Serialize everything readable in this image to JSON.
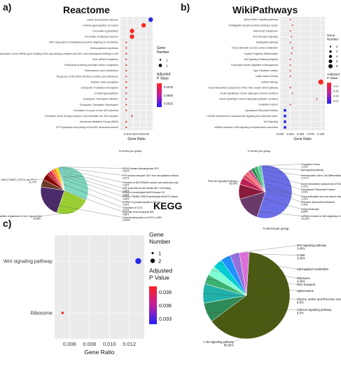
{
  "panels": {
    "a": {
      "letter": "a)",
      "title": "Reactome"
    },
    "b": {
      "letter": "b)",
      "title": "WikiPathways"
    },
    "c": {
      "letter": "c)",
      "title": "KEGG"
    }
  },
  "pie_header": "% terms per group",
  "legend_labels": {
    "gene_number": "Gene\nNumber",
    "adjusted_p": "Adjusted\nP Value"
  },
  "chart_data": [
    {
      "id": "reactome_dot",
      "type": "scatter",
      "title": "Reactome",
      "xlabel": "Gene Ratio",
      "ylabel": "",
      "x_ticks": [
        "0.01",
        "0.02",
        "0.03",
        "0.04"
      ],
      "xlim": [
        0.0,
        0.05
      ],
      "categories": [
        "HDMs demethylate histones",
        "O-linked glycosylation of mucins",
        "Chromatin organization",
        "Chromatin modifying enzymes",
        "SRP-dependent cotranslational protein targeting to membrane",
        "Selenocysteine synthesis",
        "Activation of the mRNA upon binding of the cap-binding complex and eIFs, and subsequent binding to 43S",
        "Viral mRNA Translation",
        "Ribosomal scanning and start codon recognition",
        "Selenoamino acid metabolism",
        "Response of EIF2AK4 (GCN2) to amino acid deficiency",
        "Peptide chain elongation",
        "Eukaryotic Translation Elongation",
        "O-linked glycosylation",
        "Eukaryotic Translation Initiation",
        "Eukaryotic Translation Termination",
        "Formation of a pool of free 40S subunits",
        "Formation of the ternary complex, and thereafter the 43S complex",
        "Nonsense-Mediated Decay (NMD)",
        "GTP hydrolysis and joining of the 60S ribosomal subunit"
      ],
      "gene_ratio": [
        0.047,
        0.036,
        0.018,
        0.018,
        0.009,
        0.009,
        0.009,
        0.009,
        0.009,
        0.009,
        0.009,
        0.009,
        0.009,
        0.009,
        0.009,
        0.009,
        0.009,
        0.018,
        0.009,
        0.009
      ],
      "gene_number": [
        2,
        2,
        2,
        2,
        1,
        1,
        1,
        1,
        1,
        1,
        1,
        1,
        1,
        1,
        1,
        1,
        1,
        1,
        1,
        1
      ],
      "p_adjust": [
        0.0025,
        0.009,
        0.009,
        0.009,
        0.009,
        0.009,
        0.009,
        0.009,
        0.009,
        0.009,
        0.009,
        0.009,
        0.009,
        0.009,
        0.009,
        0.009,
        0.009,
        0.009,
        0.009,
        0.009
      ],
      "legend": {
        "size_ticks": [
          "1",
          "2"
        ],
        "color_ticks": [
          "0.0075",
          "0.0050",
          "0.0025"
        ]
      }
    },
    {
      "id": "wikipathways_dot",
      "type": "scatter",
      "title": "WikiPathways",
      "xlabel": "Gene Ratio",
      "ylabel": "",
      "x_ticks": [
        "0.000",
        "0.025",
        "0.050",
        "0.075",
        "0.100"
      ],
      "xlim": [
        0.0,
        0.11
      ],
      "categories": [
        "Alpha 6 Beta 4 signaling pathway",
        "Intraflagellar transport proteins binding to dynein",
        "Vitamin B12 Metabolism",
        "EPO Receptor Signaling",
        "Sphingolipid pathway",
        "Trans-sulfuration and one carbon metabolism",
        "Cardiac Progenitor Differentiation",
        "Wnt Signaling Pathway (Netpath)",
        "Transcription factor regulation in adipogenesis",
        "Type II diabetes mellitus",
        "Leptin Insulin Overlap",
        "miRNA Pathway",
        "Novel intracellular components of RIG-I-like receptor (RLR) pathway",
        "Insulin signalling in human adipocytes (normal condition)",
        "Insulin signalling in human adipocytes (diabetic condition)",
        "Translation Factors",
        "Cytoplasmic Ribosomal Proteins",
        "LncRNA involvement in canonical Wnt signaling and colorectal cancer",
        "Wnt Signaling",
        "miRNAs involved in Wnt Signaling in hepatocellular carcinoma"
      ],
      "gene_ratio": [
        0.025,
        0.03,
        0.025,
        0.028,
        0.025,
        0.03,
        0.028,
        0.025,
        0.025,
        0.025,
        0.025,
        0.1,
        0.025,
        0.03,
        0.09,
        0.025,
        0.012,
        0.012,
        0.012,
        0.012
      ],
      "gene_number": [
        1,
        1,
        1,
        1,
        1,
        1,
        1,
        1,
        1,
        1,
        1,
        5,
        1,
        1,
        1,
        1,
        2,
        2,
        2,
        2
      ],
      "p_adjust": [
        0.075,
        0.075,
        0.075,
        0.075,
        0.075,
        0.075,
        0.075,
        0.075,
        0.075,
        0.075,
        0.075,
        0.08,
        0.075,
        0.075,
        0.075,
        0.075,
        0.015,
        0.015,
        0.015,
        0.015
      ],
      "legend": {
        "size_ticks": [
          "2",
          "3",
          "4",
          "5",
          "6"
        ],
        "color_ticks": [
          "0.07",
          "0.05",
          "0.03",
          "0.01"
        ]
      }
    },
    {
      "id": "kegg_dot",
      "type": "scatter",
      "title": "KEGG",
      "xlabel": "Gene Ratio",
      "ylabel": "",
      "x_ticks": [
        "0.006",
        "0.008",
        "0.010",
        "0.012"
      ],
      "xlim": [
        0.0045,
        0.0135
      ],
      "categories": [
        "Wnt signaling pathway",
        "Ribosome"
      ],
      "gene_ratio": [
        0.0129,
        0.0053
      ],
      "gene_number": [
        2,
        1
      ],
      "p_adjust": [
        0.032,
        0.04
      ],
      "legend": {
        "size_ticks": [
          "1",
          "2"
        ],
        "color_ticks": [
          "0.039",
          "0.036",
          "0.033"
        ]
      }
    },
    {
      "id": "reactome_pie",
      "type": "pie",
      "header": "% terms per group",
      "slices": [
        {
          "label": "p-65 (RFC) forcode (MCC, SMC1, SMC3, PSMC1, DCP1A, and PFC4",
          "value": 31.77,
          "pct": "31.77%",
          "color": "#7fd9c0"
        },
        {
          "label": "Addition of galactose to Core 4 glycoprotein",
          "value": 21.88,
          "pct": "21.88% *",
          "color": "#9acd32"
        },
        {
          "label": "Oxytocin/vasopressin of p-PEC1 p-55%",
          "value": 20.55,
          "pct": "20.55%",
          "color": "#4b2a6a"
        },
        {
          "label": "Assembly of the eukaryotic 80S",
          "value": 4.88,
          "pct": "4.88%",
          "color": "#6b3a2a"
        },
        {
          "label": "Translation of 47-4C",
          "value": 4.07,
          "pct": "4.07%",
          "color": "#8b0000"
        },
        {
          "label": "HNRNC2 is phosphorylated at Ser1C4",
          "value": 1.63,
          "pct": "1.63%",
          "color": "#b22222"
        },
        {
          "label": "KDM6A, KDM6B, KDM7A demethylate Me2K37-Histone H3",
          "value": 1.63,
          "pct": "1.63%",
          "color": "#dc143c"
        },
        {
          "label": "KDM6A to demethylate Me2K9-histone H3",
          "value": 1.63,
          "pct": "1.63%",
          "color": "#ff6347"
        },
        {
          "label": "eIEF binds MAC1A and inhibits MKT-125 binding",
          "value": 1.63,
          "pct": "1.63%",
          "color": "#ff8c00"
        },
        {
          "label": "Formation of 60S-SRNMD complex and membrane fusion in intra-Golgi retrograde traffic",
          "value": 1.63,
          "pct": "1.63%",
          "color": "#ffd700"
        },
        {
          "label": "RYR sensors transport Ca2+ from sarcoplasmic reticulum lumen to cytosol",
          "value": 0.81,
          "pct": "0.81%",
          "color": "#32cd32"
        },
        {
          "label": "PAG4D nitrates dehydrogenase 2PG",
          "value": 0.81,
          "pct": "0.81% *",
          "color": "#1e90ff"
        }
      ]
    },
    {
      "id": "wikipathways_pie",
      "type": "pie",
      "header": "% terms per group",
      "slices": [
        {
          "label": "PI3K-Akt Signaling Pathway",
          "value": 56.96,
          "pct": "56.96%",
          "color": "#6a6ee8"
        },
        {
          "label": "miRNAs involved in Wnt signaling in hepatocellular carcinoma",
          "value": 15.33,
          "pct": "15.33%",
          "color": "#6b3a6b"
        },
        {
          "label": "Ciliary landscape",
          "value": 8.89,
          "pct": "8.89%",
          "color": "#8b1a3a"
        },
        {
          "label": "Selenium Micronutrient Network",
          "value": 4.44,
          "pct": "4.44%",
          "color": "#c21e56"
        },
        {
          "label": "Trans-sulfuration and one carbon metabolism",
          "value": 2.22,
          "pct": "2.22%",
          "color": "#e0405e"
        },
        {
          "label": "Cytoplasmic Ribosomal Proteins",
          "value": 2.22,
          "pct": "2.22%",
          "color": "#ff6b6b"
        },
        {
          "label": "Novel intracellular components of RIG-I-like receptor (RLR) pathway",
          "value": 2.22,
          "pct": "2.22%",
          "color": "#d94f8a"
        },
        {
          "label": "Hematopoietic Stem Cell Differentiation",
          "value": 2.22,
          "pct": "2.22 %",
          "color": "#2e8b57"
        },
        {
          "label": "Sphingolipid pathway",
          "value": 2.22,
          "pct": "",
          "color": "#3cb371"
        },
        {
          "label": "Translation Factor",
          "value": 2.22,
          "pct": "2.22%",
          "color": "#66cdaa"
        }
      ]
    },
    {
      "id": "kegg_pie",
      "type": "pie",
      "header": "% terms per group",
      "slices": [
        {
          "label": "PI3K-Akt signaling pathway",
          "value": 60.92,
          "pct": "60.92%",
          "color": "#4b5a12"
        },
        {
          "label": "Calcium signaling pathway",
          "value": 6.9,
          "pct": "6.9%",
          "color": "#2e8b57"
        },
        {
          "label": "Glycine, serine and threonine metabolism",
          "value": 6.9,
          "pct": "6.9%",
          "color": "#20b2aa"
        },
        {
          "label": "Spliceosome",
          "value": 3.45,
          "pct": "",
          "color": "#3cb371"
        },
        {
          "label": "RNA transport",
          "value": 3.45,
          "pct": "",
          "color": "#7fffd4"
        },
        {
          "label": "Ribosome",
          "value": 3.45,
          "pct": "3.45%",
          "color": "#00ced1"
        },
        {
          "label": "Sphingolipid metabolism",
          "value": 3.45,
          "pct": "",
          "color": "#1e90ff"
        },
        {
          "label": "CAMs",
          "value": 3.45,
          "pct": "3.45%",
          "color": "#9370db"
        },
        {
          "label": "Wnt signaling pathway",
          "value": 3.45,
          "pct": "3.45%",
          "color": "#da70d6"
        }
      ]
    }
  ]
}
